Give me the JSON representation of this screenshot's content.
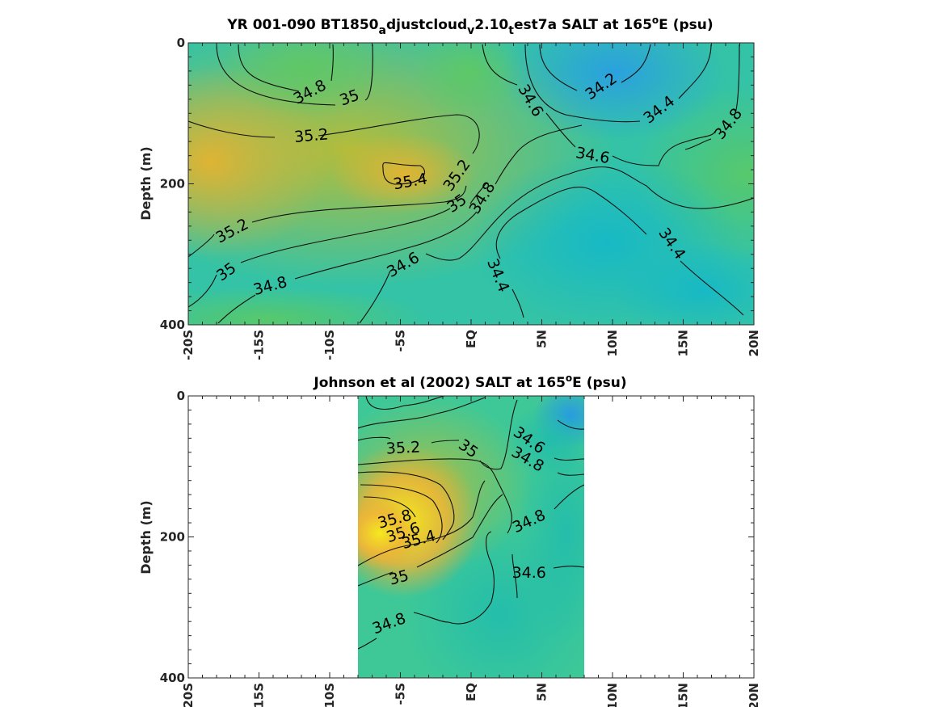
{
  "chart_data": [
    {
      "type": "heatmap",
      "title": {
        "pre": "YR 001-090 BT1850",
        "s1": "a",
        "m1": "djustcloud",
        "s2": "v",
        "m2": "2.10",
        "s3": "t",
        "m3": "est7a SALT at 165",
        "sup": "o",
        "post": "E (psu)"
      },
      "ylabel": "Depth (m)",
      "xlim": [
        -20,
        20
      ],
      "ylim": [
        0,
        400
      ],
      "y_reversed": true,
      "x_tick_labels": [
        "-20S",
        "-15S",
        "-10S",
        "-5S",
        "EQ",
        "5N",
        "10N",
        "15N",
        "20N"
      ],
      "y_tick_labels": [
        "0",
        "200",
        "400"
      ],
      "contour_levels": [
        34.2,
        34.4,
        34.6,
        34.8,
        35,
        35.2,
        35.4
      ],
      "contour_labels": [
        {
          "text": "34.8",
          "x": -11.4,
          "y": 70,
          "angle": -28
        },
        {
          "text": "35",
          "x": -8.6,
          "y": 78,
          "angle": -20
        },
        {
          "text": "35.2",
          "x": -11.3,
          "y": 132,
          "angle": -5
        },
        {
          "text": "35.4",
          "x": -4.3,
          "y": 197,
          "angle": -10
        },
        {
          "text": "35.2",
          "x": -1.0,
          "y": 188,
          "angle": -55
        },
        {
          "text": "35",
          "x": -1.0,
          "y": 228,
          "angle": -35
        },
        {
          "text": "34.8",
          "x": 0.8,
          "y": 220,
          "angle": -58
        },
        {
          "text": "34.6",
          "x": 4.2,
          "y": 82,
          "angle": 60
        },
        {
          "text": "34.2",
          "x": 9.2,
          "y": 62,
          "angle": -35
        },
        {
          "text": "34.4",
          "x": 13.3,
          "y": 95,
          "angle": -38
        },
        {
          "text": "34.8",
          "x": 18.2,
          "y": 115,
          "angle": -52
        },
        {
          "text": "34.6",
          "x": 8.6,
          "y": 160,
          "angle": 10
        },
        {
          "text": "35.2",
          "x": -16.9,
          "y": 267,
          "angle": -28
        },
        {
          "text": "35",
          "x": -17.3,
          "y": 325,
          "angle": -35
        },
        {
          "text": "34.8",
          "x": -14.2,
          "y": 345,
          "angle": -15
        },
        {
          "text": "34.6",
          "x": -4.8,
          "y": 315,
          "angle": -30
        },
        {
          "text": "34.4",
          "x": 1.9,
          "y": 330,
          "angle": 68
        },
        {
          "text": "34.4",
          "x": 14.2,
          "y": 285,
          "angle": 55
        }
      ]
    },
    {
      "type": "heatmap",
      "title": {
        "pre": "Johnson et al (2002) SALT at 165",
        "sup": "o",
        "post": "E (psu)"
      },
      "ylabel": "Depth (m)",
      "xlim": [
        -20,
        20
      ],
      "ylim": [
        0,
        400
      ],
      "y_reversed": true,
      "data_x_range": [
        -8,
        8
      ],
      "x_tick_labels": [
        "-20S",
        "-15S",
        "-10S",
        "-5S",
        "EQ",
        "5N",
        "10N",
        "15N",
        "20N"
      ],
      "y_tick_labels": [
        "0",
        "200",
        "400"
      ],
      "contour_levels": [
        34.6,
        34.8,
        35,
        35.2,
        35.4,
        35.6,
        35.8
      ],
      "contour_labels": [
        {
          "text": "35.2",
          "x": -4.8,
          "y": 74,
          "angle": -3
        },
        {
          "text": "35",
          "x": -0.2,
          "y": 75,
          "angle": 35
        },
        {
          "text": "34.6",
          "x": 4.1,
          "y": 63,
          "angle": 35
        },
        {
          "text": "34.8",
          "x": 4.0,
          "y": 90,
          "angle": 30
        },
        {
          "text": "35.8",
          "x": -5.4,
          "y": 175,
          "angle": -15
        },
        {
          "text": "35.6",
          "x": -4.8,
          "y": 194,
          "angle": -18
        },
        {
          "text": "35.4",
          "x": -3.7,
          "y": 204,
          "angle": -15
        },
        {
          "text": "34.8",
          "x": 4.1,
          "y": 178,
          "angle": -25
        },
        {
          "text": "34.6",
          "x": 4.1,
          "y": 251,
          "angle": 0
        },
        {
          "text": "35",
          "x": -5.1,
          "y": 258,
          "angle": -15
        },
        {
          "text": "34.8",
          "x": -5.8,
          "y": 323,
          "angle": -20
        }
      ]
    }
  ]
}
